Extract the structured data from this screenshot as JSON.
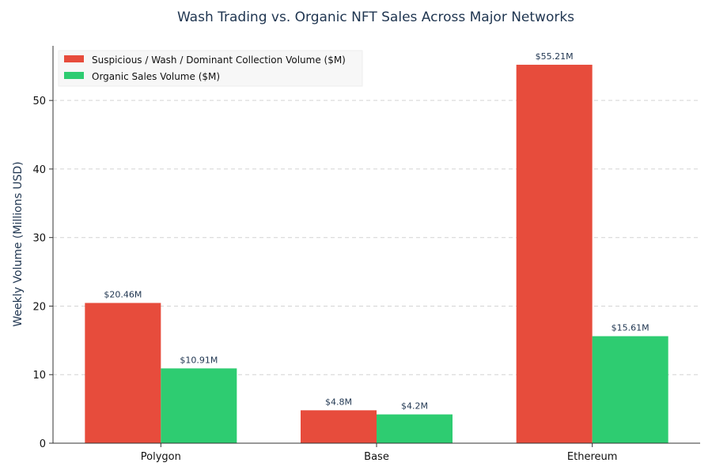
{
  "chart_data": {
    "type": "bar",
    "title": "Wash Trading vs. Organic NFT Sales Across Major Networks",
    "xlabel": "",
    "ylabel": "Weekly Volume (Millions USD)",
    "categories": [
      "Polygon",
      "Base",
      "Ethereum"
    ],
    "series": [
      {
        "name": "Suspicious / Wash / Dominant Collection Volume ($M)",
        "values": [
          20.46,
          4.8,
          55.21
        ],
        "labels": [
          "$20.46M",
          "$4.8M",
          "$55.21M"
        ],
        "color": "#e74c3c"
      },
      {
        "name": "Organic Sales Volume ($M)",
        "values": [
          10.91,
          4.2,
          15.61
        ],
        "labels": [
          "$10.91M",
          "$4.2M",
          "$15.61M"
        ],
        "color": "#2ecc71"
      }
    ],
    "yticks": [
      0,
      10,
      20,
      30,
      40,
      50
    ],
    "ylim": [
      0,
      57.97
    ],
    "grid": "horizontal dashed",
    "legend_position": "top-left"
  }
}
